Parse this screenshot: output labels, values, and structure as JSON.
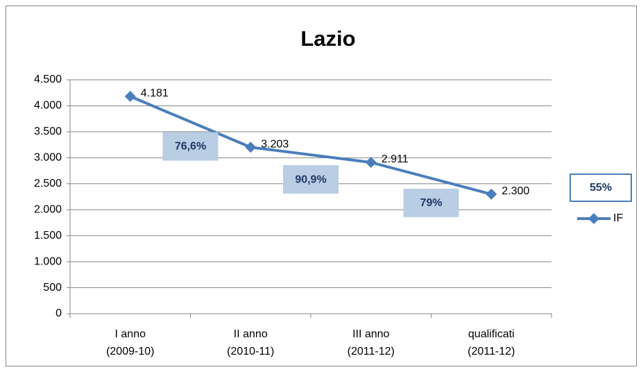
{
  "chart_data": {
    "type": "line",
    "title": "Lazio",
    "categories": [
      "I anno\n(2009-10)",
      "II anno\n(2010-11)",
      "III anno\n(2011-12)",
      "qualificati\n(2011-12)"
    ],
    "series": [
      {
        "name": "IF",
        "color": "#4a7ebb",
        "values": [
          4181,
          3203,
          2911,
          2300
        ],
        "value_labels": [
          "4.181",
          "3.203",
          "2.911",
          "2.300"
        ]
      }
    ],
    "ylim": [
      0,
      4500
    ],
    "yticks": [
      0,
      500,
      {
        "value": 1000,
        "label": "1.000"
      },
      {
        "value": 1500,
        "label": "1.500"
      },
      {
        "value": 2000,
        "label": "2.000"
      },
      {
        "value": 2500,
        "label": "2.500"
      },
      {
        "value": 3000,
        "label": "3.000"
      },
      {
        "value": 3500,
        "label": "3.500"
      },
      {
        "value": 4000,
        "label": "4.000"
      },
      {
        "value": 4500,
        "label": "4.500"
      }
    ],
    "grid": true,
    "legend": "right",
    "annotations": [
      "76,6%",
      "90,9%",
      "79%"
    ],
    "overall_annotation": "55%"
  }
}
